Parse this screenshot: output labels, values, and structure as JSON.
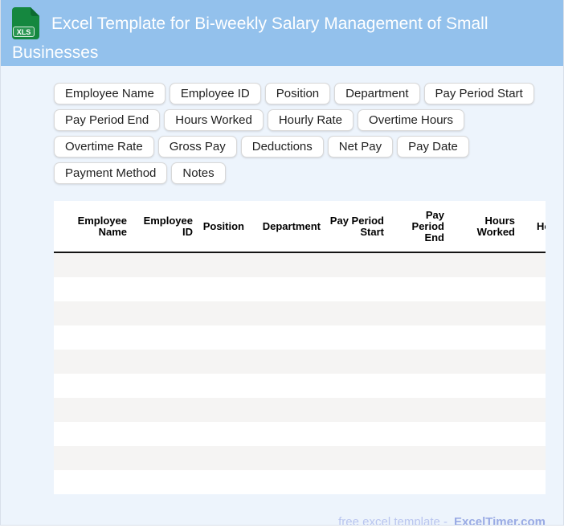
{
  "header": {
    "title": "Excel Template for Bi-weekly Salary Management of Small Businesses",
    "icon_label": "XLS"
  },
  "chips": [
    "Employee Name",
    "Employee ID",
    "Position",
    "Department",
    "Pay Period Start",
    "Pay Period End",
    "Hours Worked",
    "Hourly Rate",
    "Overtime Hours",
    "Overtime Rate",
    "Gross Pay",
    "Deductions",
    "Net Pay",
    "Pay Date",
    "Payment Method",
    "Notes"
  ],
  "table": {
    "columns": [
      "Employee Name",
      "Employee ID",
      "Position",
      "Department",
      "Pay Period Start",
      "Pay Period End",
      "Hours Worked",
      "Hourly Rate"
    ],
    "row_count": 10,
    "rows_empty": true
  },
  "footer": {
    "prefix": "free excel template -",
    "brand": "ExcelTimer.com"
  },
  "colors": {
    "header_bg": "#93c1ec",
    "page_bg": "#edf4fc",
    "row_stripe": "#f5f4f3",
    "icon_green": "#15873f",
    "footer_text": "#b9c5ef",
    "footer_brand": "#9aabe4"
  }
}
